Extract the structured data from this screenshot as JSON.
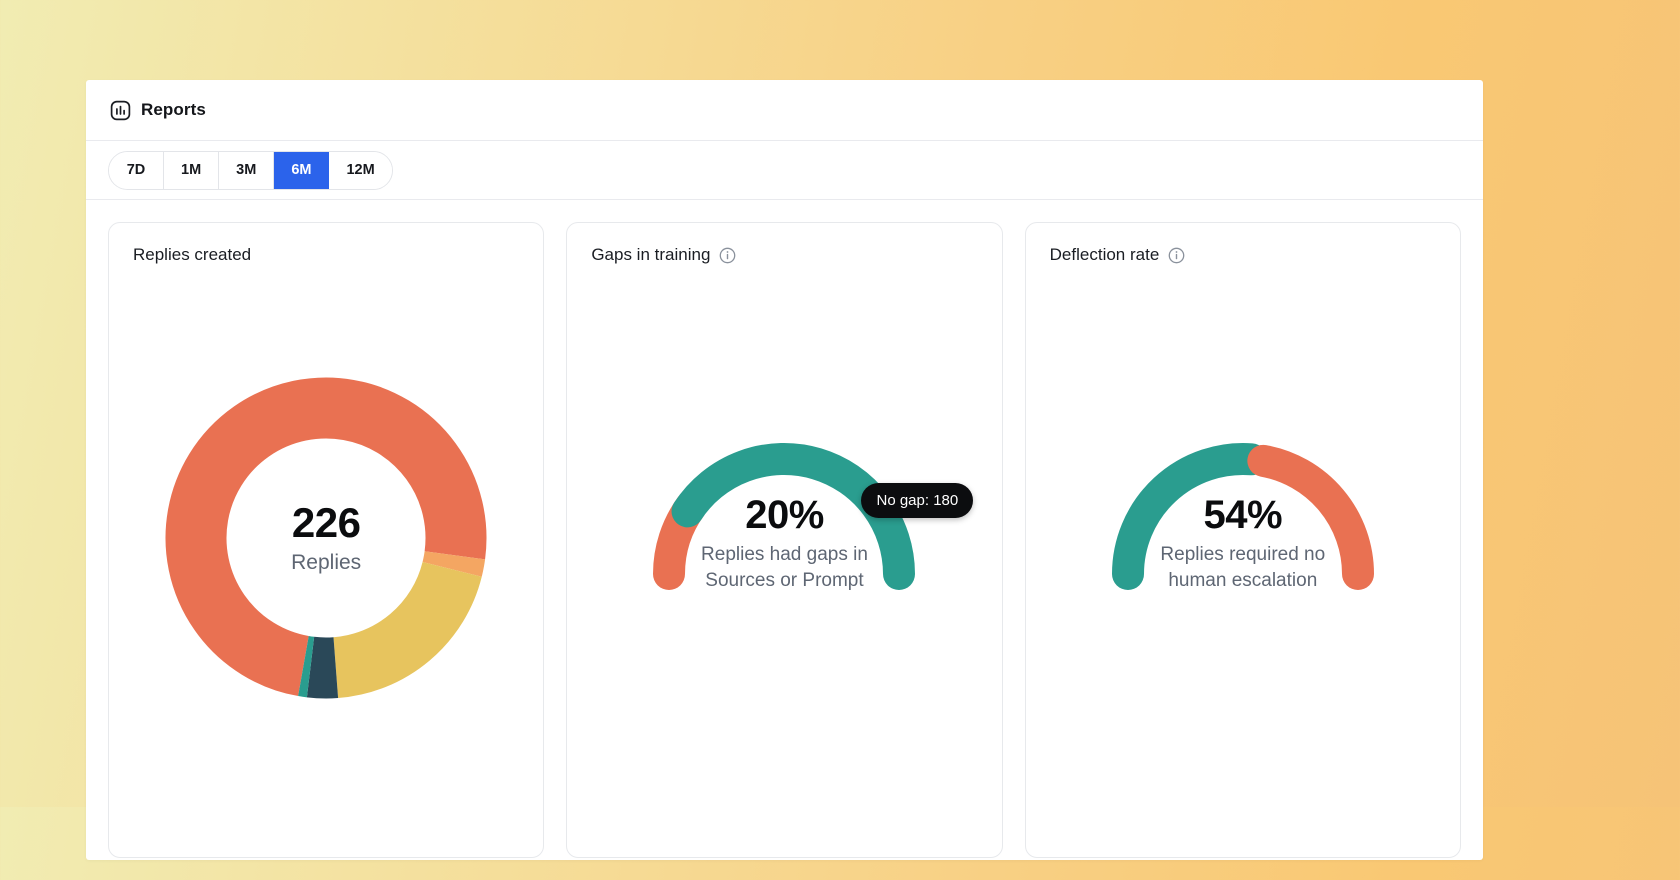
{
  "header": {
    "title": "Reports",
    "icon": "bar-chart-icon"
  },
  "tabs": {
    "items": [
      {
        "label": "7D",
        "selected": false
      },
      {
        "label": "1M",
        "selected": false
      },
      {
        "label": "3M",
        "selected": false
      },
      {
        "label": "6M",
        "selected": true
      },
      {
        "label": "12M",
        "selected": false
      }
    ]
  },
  "colors": {
    "accent_blue": "#2B63EB",
    "salmon": "#E97152",
    "light_orange": "#F4A662",
    "yellow": "#E7C45E",
    "dark_slate": "#2A4858",
    "teal": "#2A9D8F",
    "tooltip_bg": "#0C0D0F",
    "border": "#E7E9EC"
  },
  "cards": [
    {
      "title": "Replies created",
      "has_info_icon": false
    },
    {
      "title": "Gaps in training",
      "has_info_icon": true
    },
    {
      "title": "Deflection rate",
      "has_info_icon": true
    }
  ],
  "chart_data": [
    {
      "type": "donut",
      "card": "Replies created",
      "center_value": "226",
      "center_label": "Replies",
      "total": 226,
      "start_angle_from_top_deg": 190,
      "segments": [
        {
          "color_name": "salmon",
          "color": "#E97152",
          "value": 168
        },
        {
          "color_name": "light-orange",
          "color": "#F4A662",
          "value": 4
        },
        {
          "color_name": "yellow",
          "color": "#E7C45E",
          "value": 45
        },
        {
          "color_name": "dark-slate",
          "color": "#2A4858",
          "value": 7
        },
        {
          "color_name": "teal",
          "color": "#2A9D8F",
          "value": 2
        }
      ]
    },
    {
      "type": "gauge",
      "card": "Gaps in training",
      "value_label": "20%",
      "percent": 20,
      "caption_line1": "Replies had gaps in",
      "caption_line2": "Sources or Prompt",
      "segments": [
        {
          "side": "left",
          "color": "#E97152",
          "pct": 20
        },
        {
          "side": "right",
          "color": "#2A9D8F",
          "pct": 80
        }
      ],
      "junction": "overlap",
      "tooltip": {
        "text": "No gap: 180"
      }
    },
    {
      "type": "gauge",
      "card": "Deflection rate",
      "value_label": "54%",
      "percent": 54,
      "caption_line1": "Replies required no",
      "caption_line2": "human escalation",
      "segments": [
        {
          "side": "left",
          "color": "#2A9D8F",
          "pct": 54
        },
        {
          "side": "right",
          "color": "#E97152",
          "pct": 46
        }
      ],
      "junction": "gap"
    }
  ]
}
